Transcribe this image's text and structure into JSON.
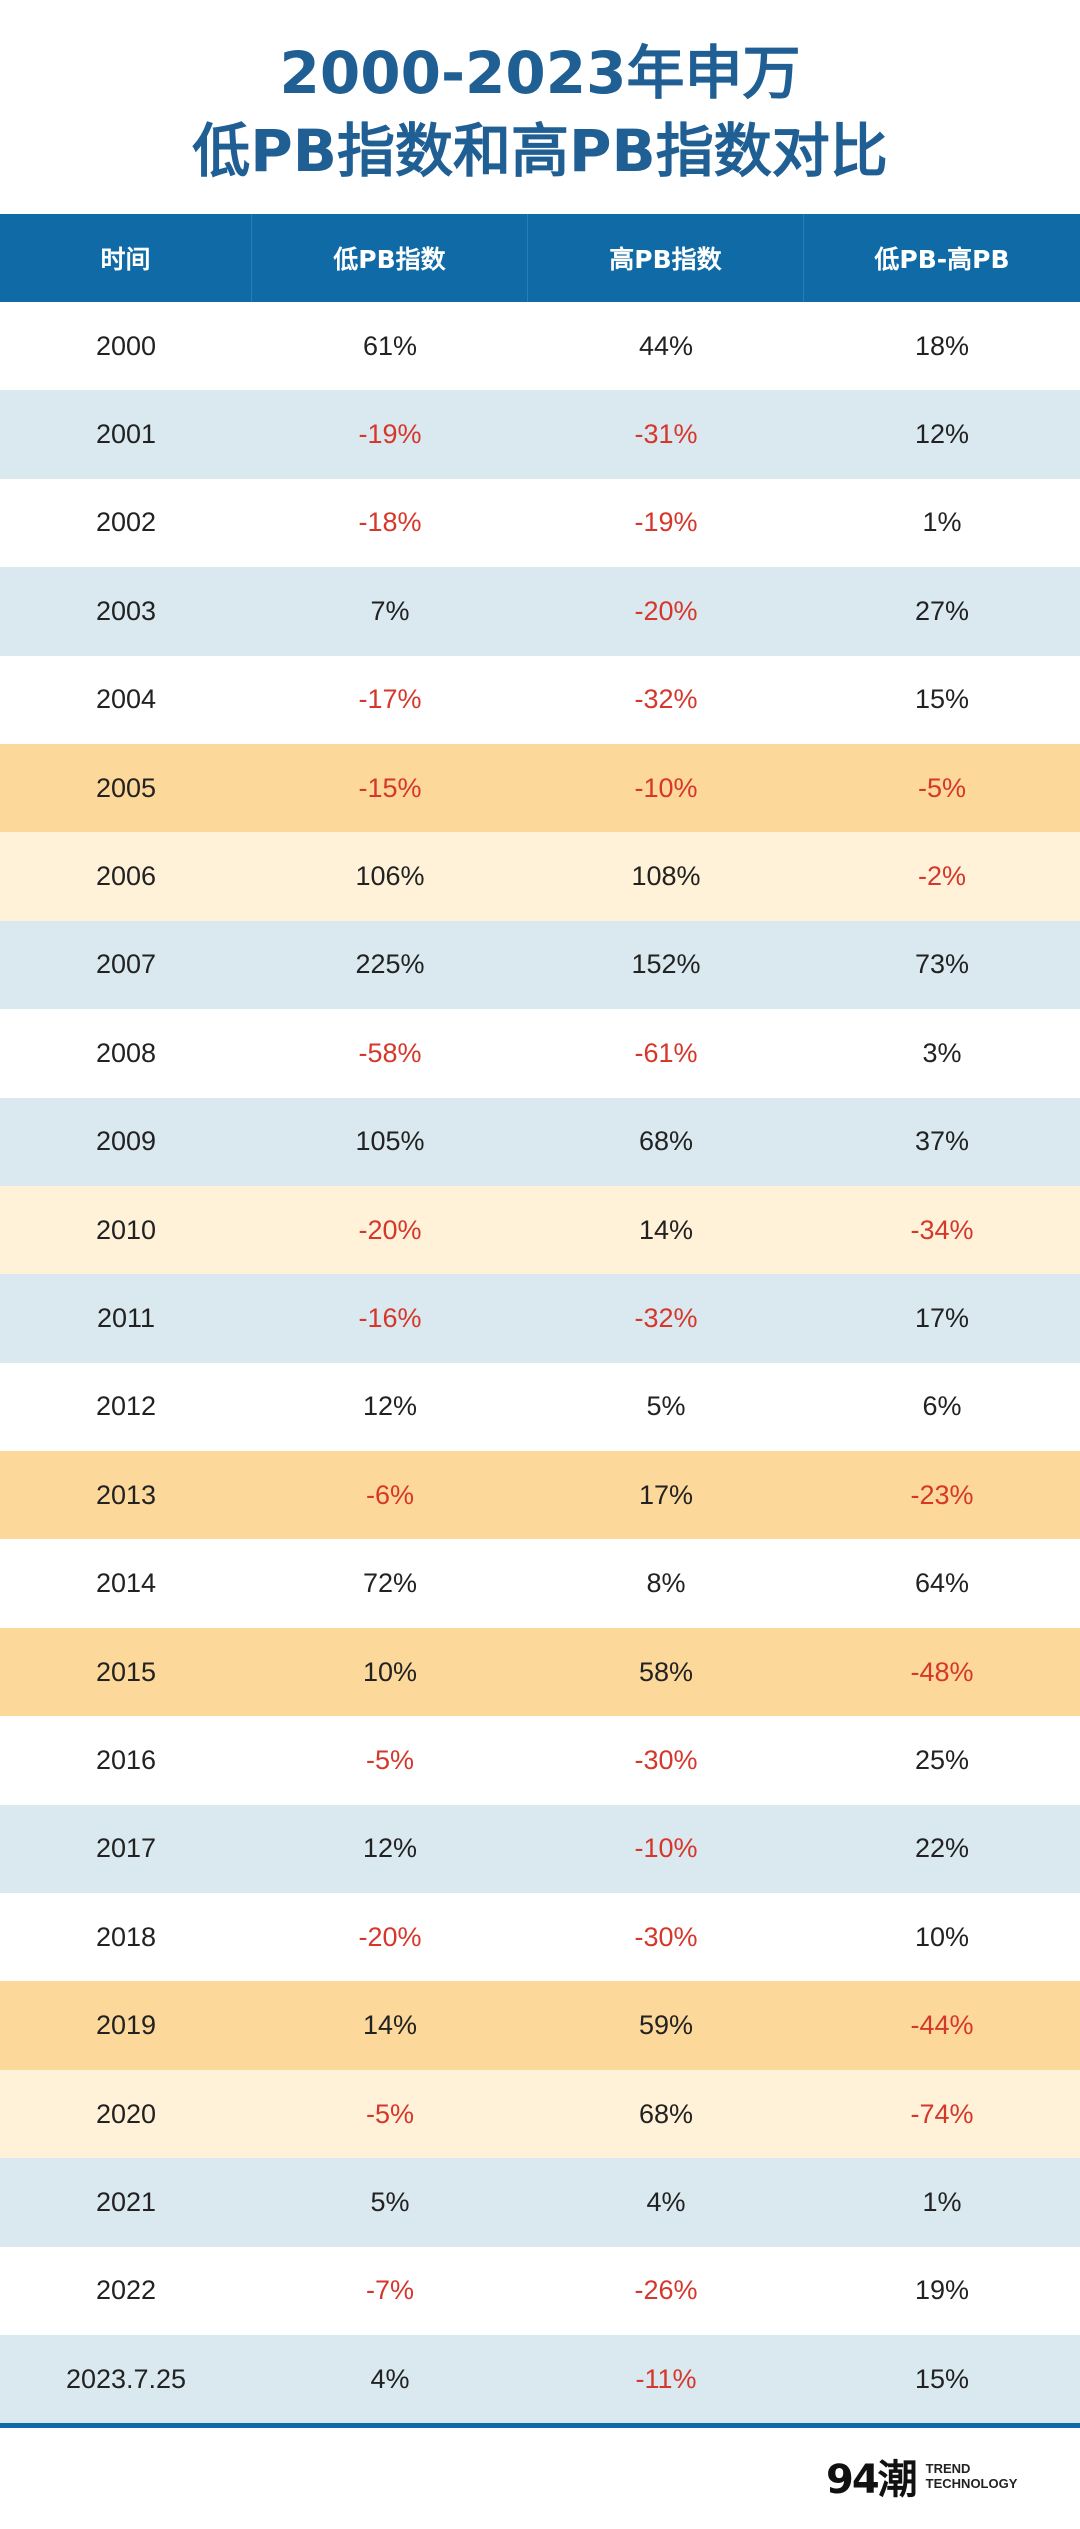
{
  "title": {
    "line1": "2000-2023年申万",
    "line2": "低PB指数和高PB指数对比"
  },
  "chart_data": {
    "type": "table",
    "columns": [
      "时间",
      "低PB指数",
      "高PB指数",
      "低PB-高PB"
    ],
    "rows": [
      [
        "2000",
        "61%",
        "44%",
        "18%"
      ],
      [
        "2001",
        "-19%",
        "-31%",
        "12%"
      ],
      [
        "2002",
        "-18%",
        "-19%",
        "1%"
      ],
      [
        "2003",
        "7%",
        "-20%",
        "27%"
      ],
      [
        "2004",
        "-17%",
        "-32%",
        "15%"
      ],
      [
        "2005",
        "-15%",
        "-10%",
        "-5%"
      ],
      [
        "2006",
        "106%",
        "108%",
        "-2%"
      ],
      [
        "2007",
        "225%",
        "152%",
        "73%"
      ],
      [
        "2008",
        "-58%",
        "-61%",
        "3%"
      ],
      [
        "2009",
        "105%",
        "68%",
        "37%"
      ],
      [
        "2010",
        "-20%",
        "14%",
        "-34%"
      ],
      [
        "2011",
        "-16%",
        "-32%",
        "17%"
      ],
      [
        "2012",
        "12%",
        "5%",
        "6%"
      ],
      [
        "2013",
        "-6%",
        "17%",
        "-23%"
      ],
      [
        "2014",
        "72%",
        "8%",
        "64%"
      ],
      [
        "2015",
        "10%",
        "58%",
        "-48%"
      ],
      [
        "2016",
        "-5%",
        "-30%",
        "25%"
      ],
      [
        "2017",
        "12%",
        "-10%",
        "22%"
      ],
      [
        "2018",
        "-20%",
        "-30%",
        "10%"
      ],
      [
        "2019",
        "14%",
        "59%",
        "-44%"
      ],
      [
        "2020",
        "-5%",
        "68%",
        "-74%"
      ],
      [
        "2021",
        "5%",
        "4%",
        "1%"
      ],
      [
        "2022",
        "-7%",
        "-26%",
        "19%"
      ],
      [
        "2023.7.25",
        "4%",
        "-11%",
        "15%"
      ]
    ],
    "row_colors": [
      "#ffffff",
      "#dae8f0",
      "#ffffff",
      "#dae8f0",
      "#ffffff",
      "#fdd89b",
      "#fff2d9",
      "#dae8f0",
      "#ffffff",
      "#dae8f0",
      "#fff2d9",
      "#dae8f0",
      "#ffffff",
      "#fdd89b",
      "#ffffff",
      "#fdd89b",
      "#ffffff",
      "#dae8f0",
      "#ffffff",
      "#fdd89b",
      "#fff2d9",
      "#dae8f0",
      "#ffffff",
      "#dae8f0"
    ],
    "colors": {
      "header": "#0f6aa5",
      "title": "#1f5f94",
      "negative": "#d6372b",
      "positive": "#222222"
    }
  },
  "logo": {
    "mark": "94潮",
    "line1": "TREND",
    "line2": "TECHNOLOGY"
  }
}
